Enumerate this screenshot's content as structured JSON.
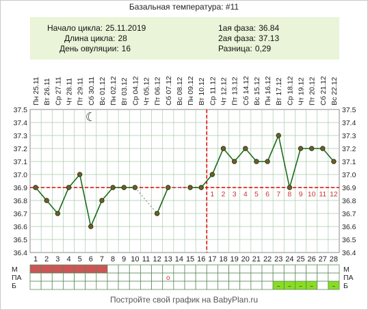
{
  "title": "Базальная температура: #11",
  "summary": {
    "cycle_start_label": "Начало цикла:",
    "cycle_start": "25.11.2019",
    "cycle_length_label": "Длина цикла:",
    "cycle_length": "28",
    "ovulation_day_label": "День овуляции:",
    "ovulation_day": "16",
    "phase1_label": "1ая фаза:",
    "phase1": "36.84",
    "phase2_label": "2ая фаза:",
    "phase2": "37.13",
    "diff_label": "Разница:",
    "diff": "0,29"
  },
  "footer": "Постройте свой график на BabyPlan.ru",
  "colors": {
    "line": "#1a6b1a",
    "point_face": "#7a5a2a",
    "coverline": "#dd0000",
    "menses": "#cc5555",
    "grid": "#a8c8a8",
    "mucus_fill": "#88dd22"
  },
  "chart_data": {
    "type": "line",
    "dates": [
      "Пн 25.11",
      "Вт 26.11",
      "Ср 27.11",
      "Чт 28.11",
      "Пт 29.11",
      "Сб 30.11",
      "Вс 01.12",
      "Пн 02.12",
      "Вт 03.12",
      "Ср 04.12",
      "Чт 05.12",
      "Пт 06.12",
      "Сб 07.12",
      "Вс 08.12",
      "Пн 09.12",
      "Вт 10.12",
      "Ср 11.12",
      "Чт 12.12",
      "Пт 13.12",
      "Сб 14.12",
      "Вс 15.12",
      "Пн 16.12",
      "Вт 17.12",
      "Ср 18.12",
      "Чт 19.12",
      "Пт 20.12",
      "Сб 21.12",
      "Вс 22.12"
    ],
    "cycle_days": [
      "1",
      "2",
      "3",
      "4",
      "5",
      "6",
      "7",
      "8",
      "9",
      "10",
      "11",
      "12",
      "13",
      "14",
      "15",
      "16",
      "17",
      "18",
      "19",
      "20",
      "21",
      "22",
      "23",
      "24",
      "25",
      "26",
      "27",
      "28"
    ],
    "temperatures": [
      36.9,
      36.8,
      36.7,
      36.9,
      37.0,
      36.6,
      36.8,
      36.9,
      36.9,
      36.9,
      null,
      36.7,
      36.9,
      null,
      36.9,
      36.9,
      37.0,
      37.2,
      37.1,
      37.2,
      37.1,
      37.1,
      37.3,
      36.9,
      37.2,
      37.2,
      37.2,
      37.1
    ],
    "y_ticks": [
      "37.5",
      "37.4",
      "37.3",
      "37.2",
      "37.1",
      "37.0",
      "36.9",
      "36.8",
      "36.7",
      "36.6",
      "36.5",
      "36.4"
    ],
    "ylim": [
      36.4,
      37.5
    ],
    "coverline": 36.9,
    "ovulation_day": 16,
    "luteal_days": [
      "1",
      "2",
      "3",
      "4",
      "5",
      "6",
      "7",
      "8",
      "9",
      "10",
      "11",
      "12"
    ],
    "moon_day": 6,
    "rows": {
      "m_label": "М",
      "pa_label": "ПА",
      "b_label": "Б"
    },
    "menses_days": [
      1,
      2,
      3,
      4,
      5,
      6,
      7
    ],
    "pa_days": [
      13
    ],
    "pa_mark": "o",
    "mucus_days": [
      23,
      24,
      25,
      26,
      28
    ],
    "mucus_mark": "–",
    "moon_symbol": "☾"
  }
}
